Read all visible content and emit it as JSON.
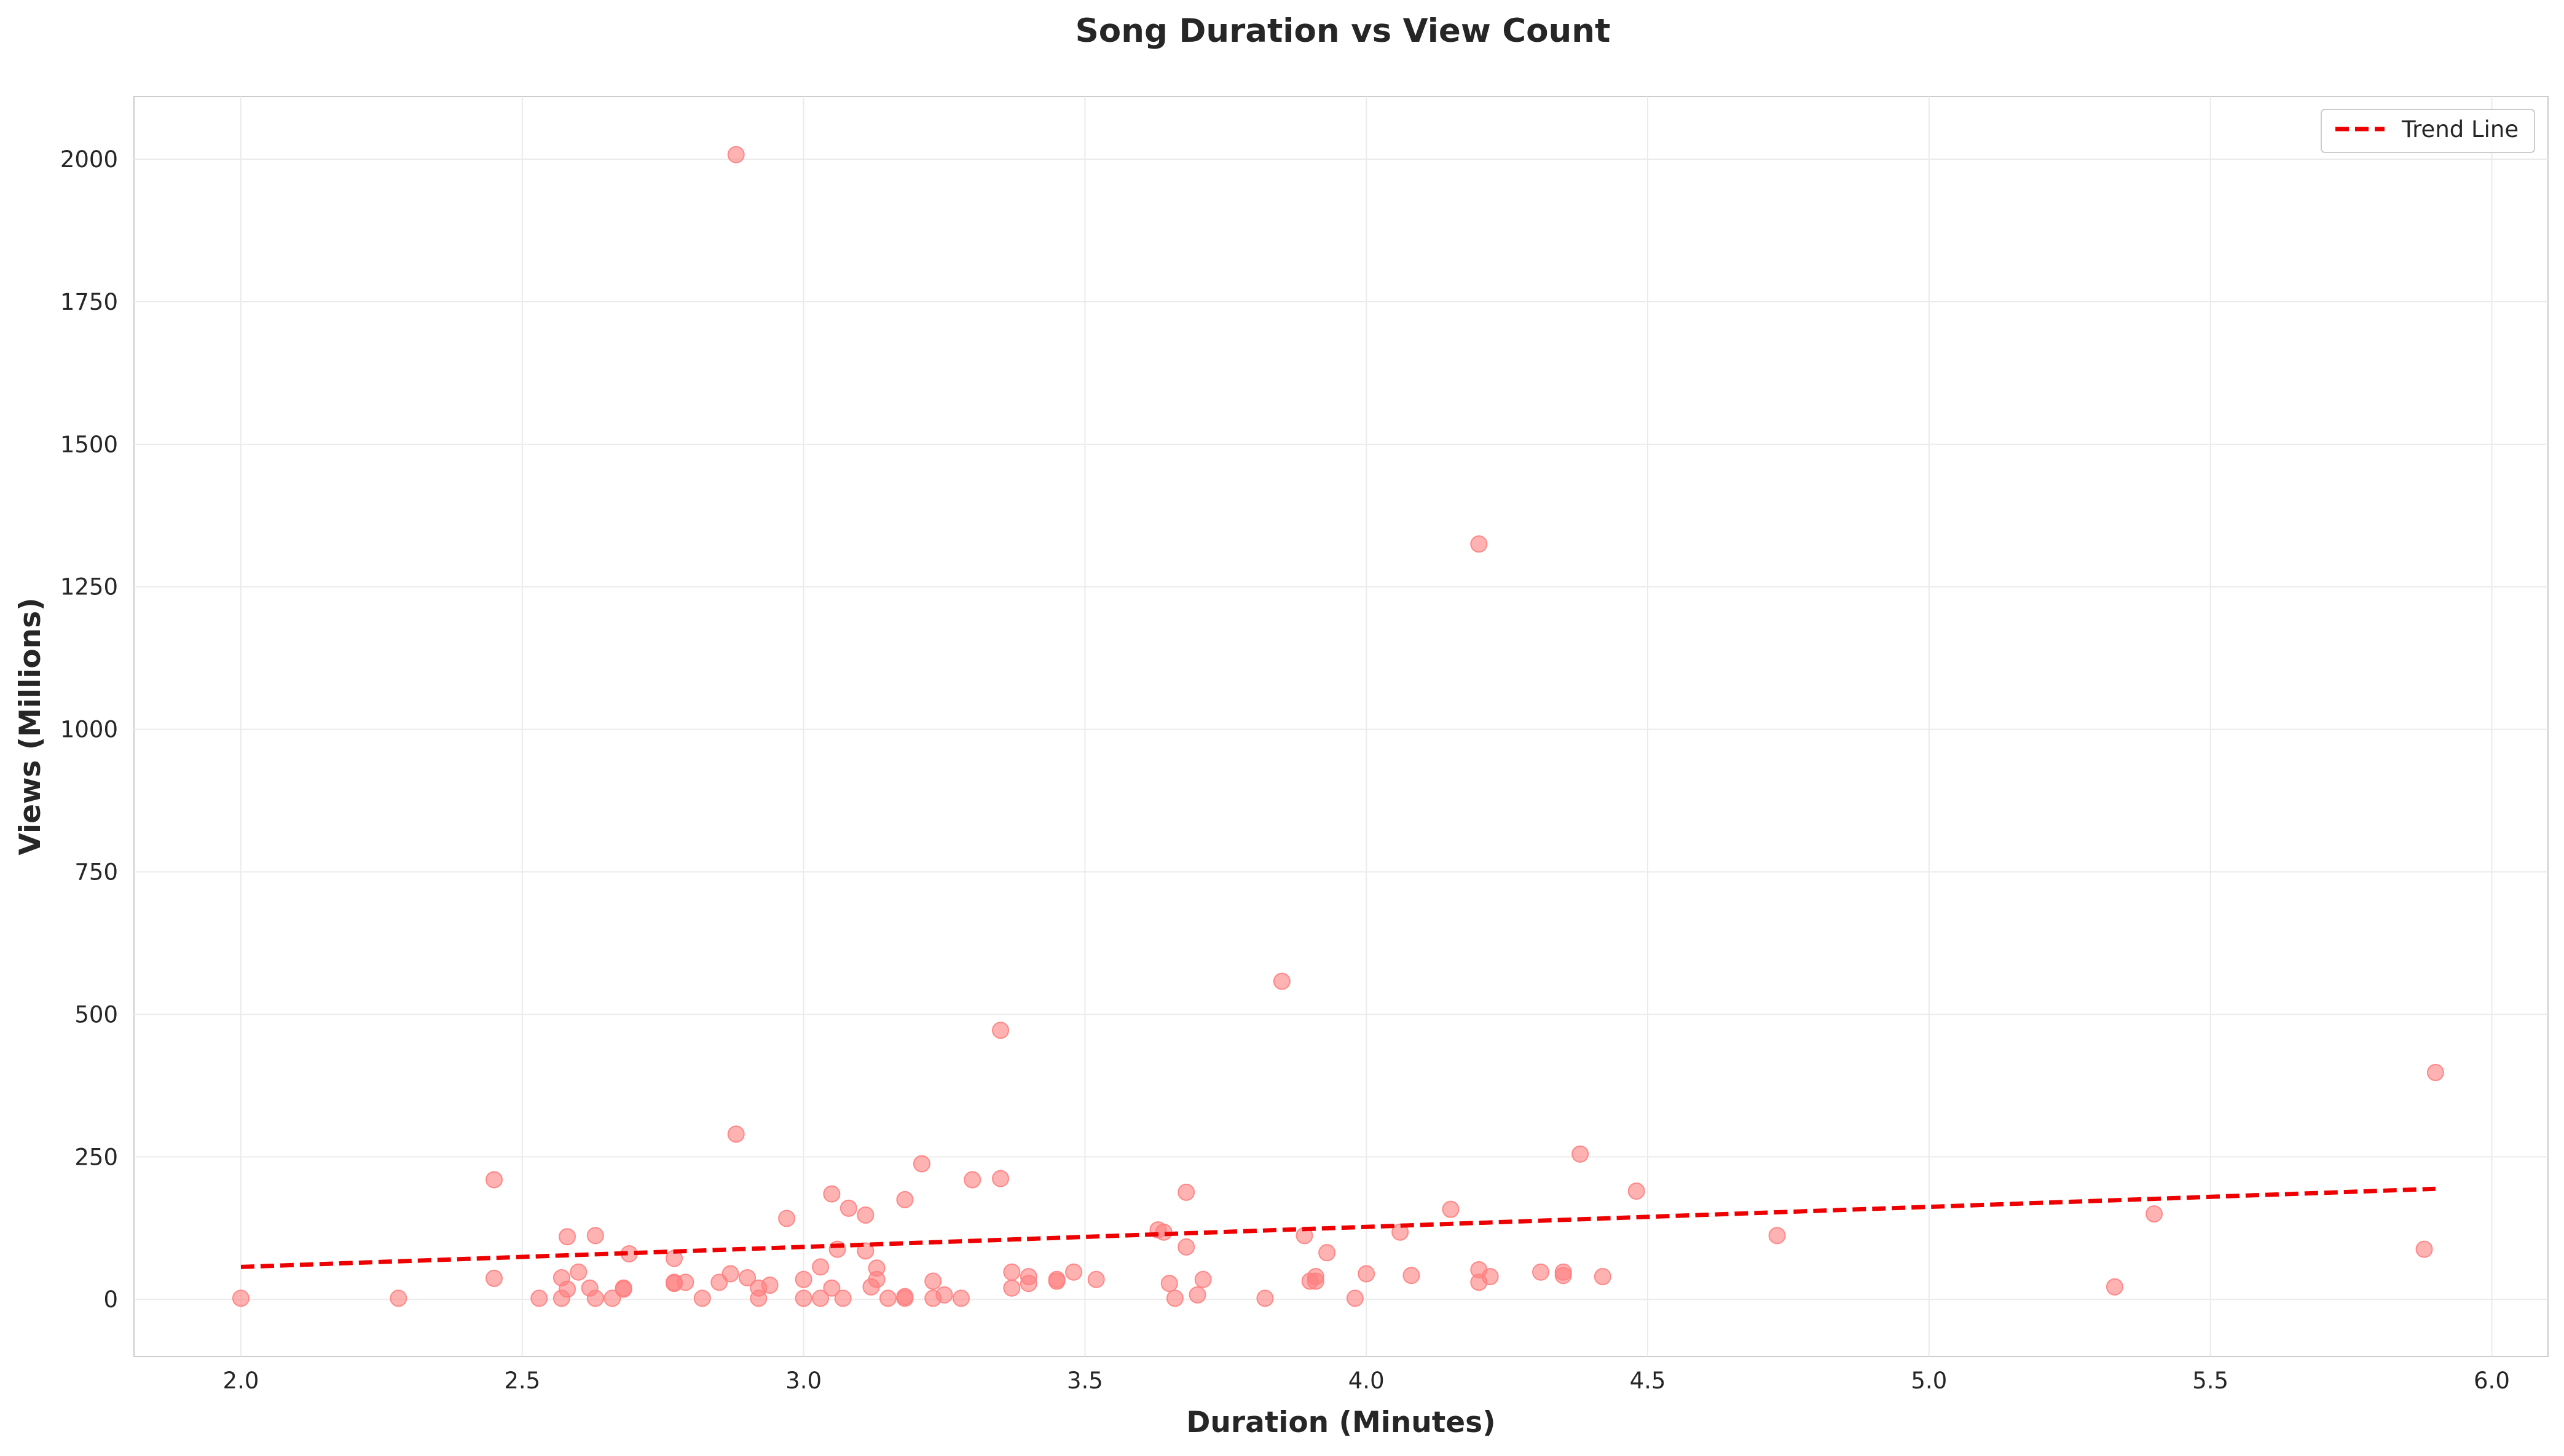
{
  "chart_data": {
    "type": "scatter",
    "title": "Song Duration vs View Count",
    "xlabel": "Duration (Minutes)",
    "ylabel": "Views (Millions)",
    "xlim": [
      1.81,
      6.1
    ],
    "ylim": [
      -100,
      2110
    ],
    "xticks": [
      2.0,
      2.5,
      3.0,
      3.5,
      4.0,
      4.5,
      5.0,
      5.5,
      6.0
    ],
    "xtick_labels": [
      "2.0",
      "2.5",
      "3.0",
      "3.5",
      "4.0",
      "4.5",
      "5.0",
      "5.5",
      "6.0"
    ],
    "yticks": [
      0,
      250,
      500,
      750,
      1000,
      1250,
      1500,
      1750,
      2000
    ],
    "ytick_labels": [
      "0",
      "250",
      "500",
      "750",
      "1000",
      "1250",
      "1500",
      "1750",
      "2000"
    ],
    "grid": true,
    "legend_position": "top-right",
    "legend_entries": [
      "Trend Line"
    ],
    "point_color": "#ff7f7f",
    "trend_color": "#ee0000",
    "points": [
      [
        2.0,
        2
      ],
      [
        2.28,
        2
      ],
      [
        2.45,
        210
      ],
      [
        2.45,
        37
      ],
      [
        2.53,
        2
      ],
      [
        2.57,
        2
      ],
      [
        2.57,
        38
      ],
      [
        2.58,
        110
      ],
      [
        2.58,
        18
      ],
      [
        2.6,
        48
      ],
      [
        2.62,
        20
      ],
      [
        2.63,
        112
      ],
      [
        2.63,
        2
      ],
      [
        2.66,
        2
      ],
      [
        2.68,
        20
      ],
      [
        2.68,
        18
      ],
      [
        2.69,
        80
      ],
      [
        2.77,
        72
      ],
      [
        2.77,
        30
      ],
      [
        2.77,
        28
      ],
      [
        2.79,
        30
      ],
      [
        2.82,
        2
      ],
      [
        2.85,
        30
      ],
      [
        2.87,
        45
      ],
      [
        2.88,
        2008
      ],
      [
        2.88,
        290
      ],
      [
        2.9,
        38
      ],
      [
        2.92,
        2
      ],
      [
        2.92,
        20
      ],
      [
        2.94,
        25
      ],
      [
        2.97,
        142
      ],
      [
        3.0,
        35
      ],
      [
        3.0,
        2
      ],
      [
        3.03,
        57
      ],
      [
        3.03,
        2
      ],
      [
        3.05,
        185
      ],
      [
        3.05,
        20
      ],
      [
        3.06,
        88
      ],
      [
        3.07,
        2
      ],
      [
        3.08,
        160
      ],
      [
        3.11,
        148
      ],
      [
        3.11,
        85
      ],
      [
        3.12,
        22
      ],
      [
        3.13,
        55
      ],
      [
        3.13,
        35
      ],
      [
        3.15,
        2
      ],
      [
        3.18,
        175
      ],
      [
        3.18,
        2
      ],
      [
        3.18,
        5
      ],
      [
        3.21,
        238
      ],
      [
        3.23,
        32
      ],
      [
        3.23,
        2
      ],
      [
        3.25,
        8
      ],
      [
        3.28,
        2
      ],
      [
        3.3,
        210
      ],
      [
        3.35,
        212
      ],
      [
        3.35,
        472
      ],
      [
        3.37,
        48
      ],
      [
        3.37,
        20
      ],
      [
        3.4,
        40
      ],
      [
        3.4,
        28
      ],
      [
        3.45,
        35
      ],
      [
        3.45,
        32
      ],
      [
        3.48,
        48
      ],
      [
        3.52,
        35
      ],
      [
        3.63,
        122
      ],
      [
        3.64,
        118
      ],
      [
        3.65,
        28
      ],
      [
        3.66,
        2
      ],
      [
        3.68,
        188
      ],
      [
        3.68,
        92
      ],
      [
        3.7,
        8
      ],
      [
        3.71,
        35
      ],
      [
        3.82,
        2
      ],
      [
        3.85,
        558
      ],
      [
        3.89,
        112
      ],
      [
        3.9,
        32
      ],
      [
        3.91,
        32
      ],
      [
        3.91,
        40
      ],
      [
        3.93,
        82
      ],
      [
        3.98,
        2
      ],
      [
        4.0,
        45
      ],
      [
        4.06,
        118
      ],
      [
        4.08,
        42
      ],
      [
        4.15,
        158
      ],
      [
        4.2,
        1325
      ],
      [
        4.2,
        52
      ],
      [
        4.2,
        30
      ],
      [
        4.22,
        40
      ],
      [
        4.31,
        48
      ],
      [
        4.35,
        48
      ],
      [
        4.35,
        42
      ],
      [
        4.38,
        255
      ],
      [
        4.42,
        40
      ],
      [
        4.48,
        190
      ],
      [
        4.73,
        112
      ],
      [
        5.33,
        22
      ],
      [
        5.4,
        150
      ],
      [
        5.88,
        88
      ],
      [
        5.9,
        398
      ]
    ],
    "trend_line": {
      "x": [
        2.0,
        5.9
      ],
      "y": [
        57,
        194
      ]
    }
  }
}
